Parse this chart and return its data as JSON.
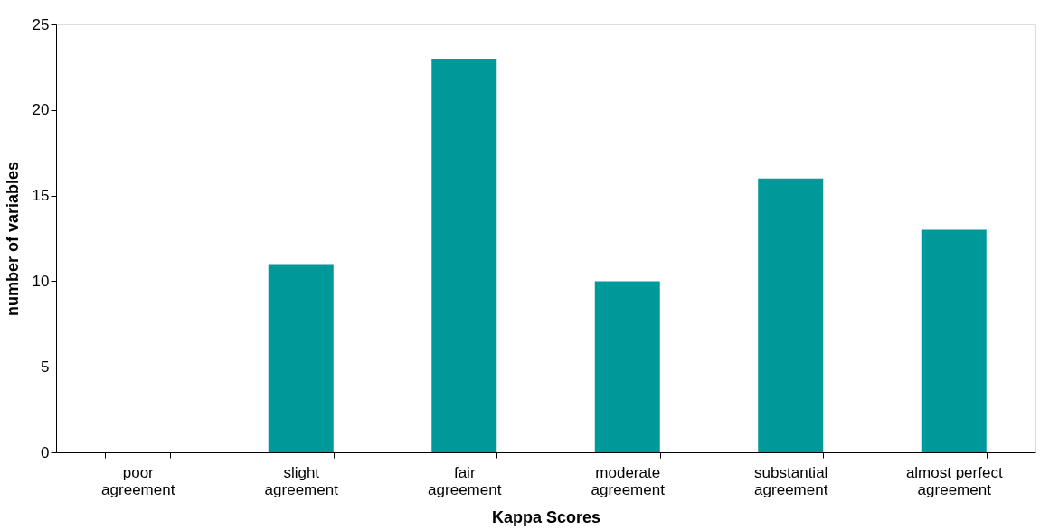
{
  "chart_data": {
    "type": "bar",
    "xlabel": "Kappa Scores",
    "ylabel": "number of variables",
    "categories": [
      "poor agreement",
      "slight agreement",
      "fair agreement",
      "moderate agreement",
      "substantial agreement",
      "almost perfect agreement"
    ],
    "values": [
      0,
      11,
      23,
      10,
      16,
      13
    ],
    "color": "#009999",
    "ylim": [
      0,
      25
    ],
    "yticks": [
      0,
      5,
      10,
      15,
      20,
      25
    ],
    "grid": false
  }
}
